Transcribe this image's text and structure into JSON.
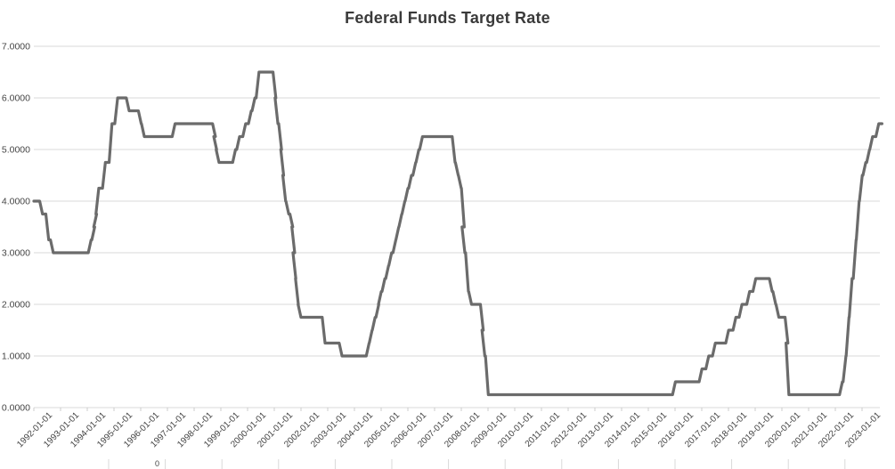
{
  "colors": {
    "line": "#6b6b6b",
    "grid": "#d9d9d9",
    "tick": "#cccccc",
    "axis_text": "#444444",
    "title_text": "#3a3a3a"
  },
  "stray_bottom_label": "0",
  "chart_data": {
    "type": "line",
    "step": true,
    "title": "Federal Funds Target Rate",
    "xlabel": "",
    "ylabel": "",
    "legend": "none",
    "grid": "horizontal-only",
    "ylim": [
      0,
      7
    ],
    "x_range": [
      "1992-01-01",
      "2023-09-30"
    ],
    "y_ticks": [
      {
        "v": 0,
        "label": "0.0000"
      },
      {
        "v": 1,
        "label": "1.0000"
      },
      {
        "v": 2,
        "label": "2.0000"
      },
      {
        "v": 3,
        "label": "3.0000"
      },
      {
        "v": 4,
        "label": "4.0000"
      },
      {
        "v": 5,
        "label": "5.0000"
      },
      {
        "v": 6,
        "label": "6.0000"
      },
      {
        "v": 7,
        "label": "7.0000"
      }
    ],
    "x_tick_labels": [
      "1992-01-01",
      "1993-01-01",
      "1994-01-01",
      "1995-01-01",
      "1996-01-01",
      "1997-01-01",
      "1998-01-01",
      "1999-01-01",
      "2000-01-01",
      "2001-01-01",
      "2002-01-01",
      "2003-01-01",
      "2004-01-01",
      "2005-01-01",
      "2006-01-01",
      "2007-01-01",
      "2008-01-01",
      "2009-01-01",
      "2010-01-01",
      "2011-01-01",
      "2012-01-01",
      "2013-01-01",
      "2014-01-01",
      "2015-01-01",
      "2016-01-01",
      "2017-01-01",
      "2018-01-01",
      "2019-01-01",
      "2020-01-01",
      "2021-01-01",
      "2022-01-01",
      "2023-01-01"
    ],
    "series": [
      {
        "name": "Federal Funds Target Rate",
        "step_points": [
          [
            "1992-01-01",
            4.0
          ],
          [
            "1992-04-09",
            3.75
          ],
          [
            "1992-07-02",
            3.25
          ],
          [
            "1992-09-04",
            3.0
          ],
          [
            "1994-02-04",
            3.25
          ],
          [
            "1994-03-22",
            3.5
          ],
          [
            "1994-04-18",
            3.75
          ],
          [
            "1994-05-17",
            4.25
          ],
          [
            "1994-08-16",
            4.75
          ],
          [
            "1994-11-15",
            5.5
          ],
          [
            "1995-02-01",
            6.0
          ],
          [
            "1995-07-06",
            5.75
          ],
          [
            "1995-12-19",
            5.5
          ],
          [
            "1996-01-31",
            5.25
          ],
          [
            "1997-03-25",
            5.5
          ],
          [
            "1998-09-29",
            5.25
          ],
          [
            "1998-10-15",
            5.0
          ],
          [
            "1998-11-17",
            4.75
          ],
          [
            "1999-06-30",
            5.0
          ],
          [
            "1999-08-24",
            5.25
          ],
          [
            "1999-11-16",
            5.5
          ],
          [
            "2000-02-02",
            5.75
          ],
          [
            "2000-03-21",
            6.0
          ],
          [
            "2000-05-16",
            6.5
          ],
          [
            "2001-01-03",
            6.0
          ],
          [
            "2001-01-31",
            5.5
          ],
          [
            "2001-03-20",
            5.0
          ],
          [
            "2001-04-18",
            4.5
          ],
          [
            "2001-05-15",
            4.0
          ],
          [
            "2001-06-27",
            3.75
          ],
          [
            "2001-08-21",
            3.5
          ],
          [
            "2001-09-17",
            3.0
          ],
          [
            "2001-10-02",
            2.5
          ],
          [
            "2001-11-06",
            2.0
          ],
          [
            "2001-12-11",
            1.75
          ],
          [
            "2002-11-06",
            1.25
          ],
          [
            "2003-06-25",
            1.0
          ],
          [
            "2004-06-30",
            1.25
          ],
          [
            "2004-08-10",
            1.5
          ],
          [
            "2004-09-21",
            1.75
          ],
          [
            "2004-11-10",
            2.0
          ],
          [
            "2004-12-14",
            2.25
          ],
          [
            "2005-02-02",
            2.5
          ],
          [
            "2005-03-22",
            2.75
          ],
          [
            "2005-05-03",
            3.0
          ],
          [
            "2005-06-30",
            3.25
          ],
          [
            "2005-08-09",
            3.5
          ],
          [
            "2005-09-20",
            3.75
          ],
          [
            "2005-11-01",
            4.0
          ],
          [
            "2005-12-13",
            4.25
          ],
          [
            "2006-01-31",
            4.5
          ],
          [
            "2006-03-28",
            4.75
          ],
          [
            "2006-05-10",
            5.0
          ],
          [
            "2006-06-29",
            5.25
          ],
          [
            "2007-09-18",
            4.75
          ],
          [
            "2007-10-31",
            4.5
          ],
          [
            "2007-12-11",
            4.25
          ],
          [
            "2008-01-22",
            3.5
          ],
          [
            "2008-01-30",
            3.0
          ],
          [
            "2008-03-18",
            2.25
          ],
          [
            "2008-04-30",
            2.0
          ],
          [
            "2008-10-08",
            1.5
          ],
          [
            "2008-10-29",
            1.0
          ],
          [
            "2008-12-16",
            0.25
          ],
          [
            "2015-12-17",
            0.5
          ],
          [
            "2016-12-15",
            0.75
          ],
          [
            "2017-03-16",
            1.0
          ],
          [
            "2017-06-15",
            1.25
          ],
          [
            "2017-12-14",
            1.5
          ],
          [
            "2018-03-22",
            1.75
          ],
          [
            "2018-06-14",
            2.0
          ],
          [
            "2018-09-27",
            2.25
          ],
          [
            "2018-12-20",
            2.5
          ],
          [
            "2019-08-01",
            2.25
          ],
          [
            "2019-09-19",
            2.0
          ],
          [
            "2019-10-31",
            1.75
          ],
          [
            "2020-03-03",
            1.25
          ],
          [
            "2020-03-16",
            0.25
          ],
          [
            "2022-03-17",
            0.5
          ],
          [
            "2022-05-05",
            1.0
          ],
          [
            "2022-06-16",
            1.75
          ],
          [
            "2022-07-28",
            2.5
          ],
          [
            "2022-09-22",
            3.25
          ],
          [
            "2022-11-03",
            4.0
          ],
          [
            "2022-12-15",
            4.5
          ],
          [
            "2023-02-02",
            4.75
          ],
          [
            "2023-03-23",
            5.0
          ],
          [
            "2023-05-04",
            5.25
          ],
          [
            "2023-07-27",
            5.5
          ]
        ]
      }
    ]
  }
}
